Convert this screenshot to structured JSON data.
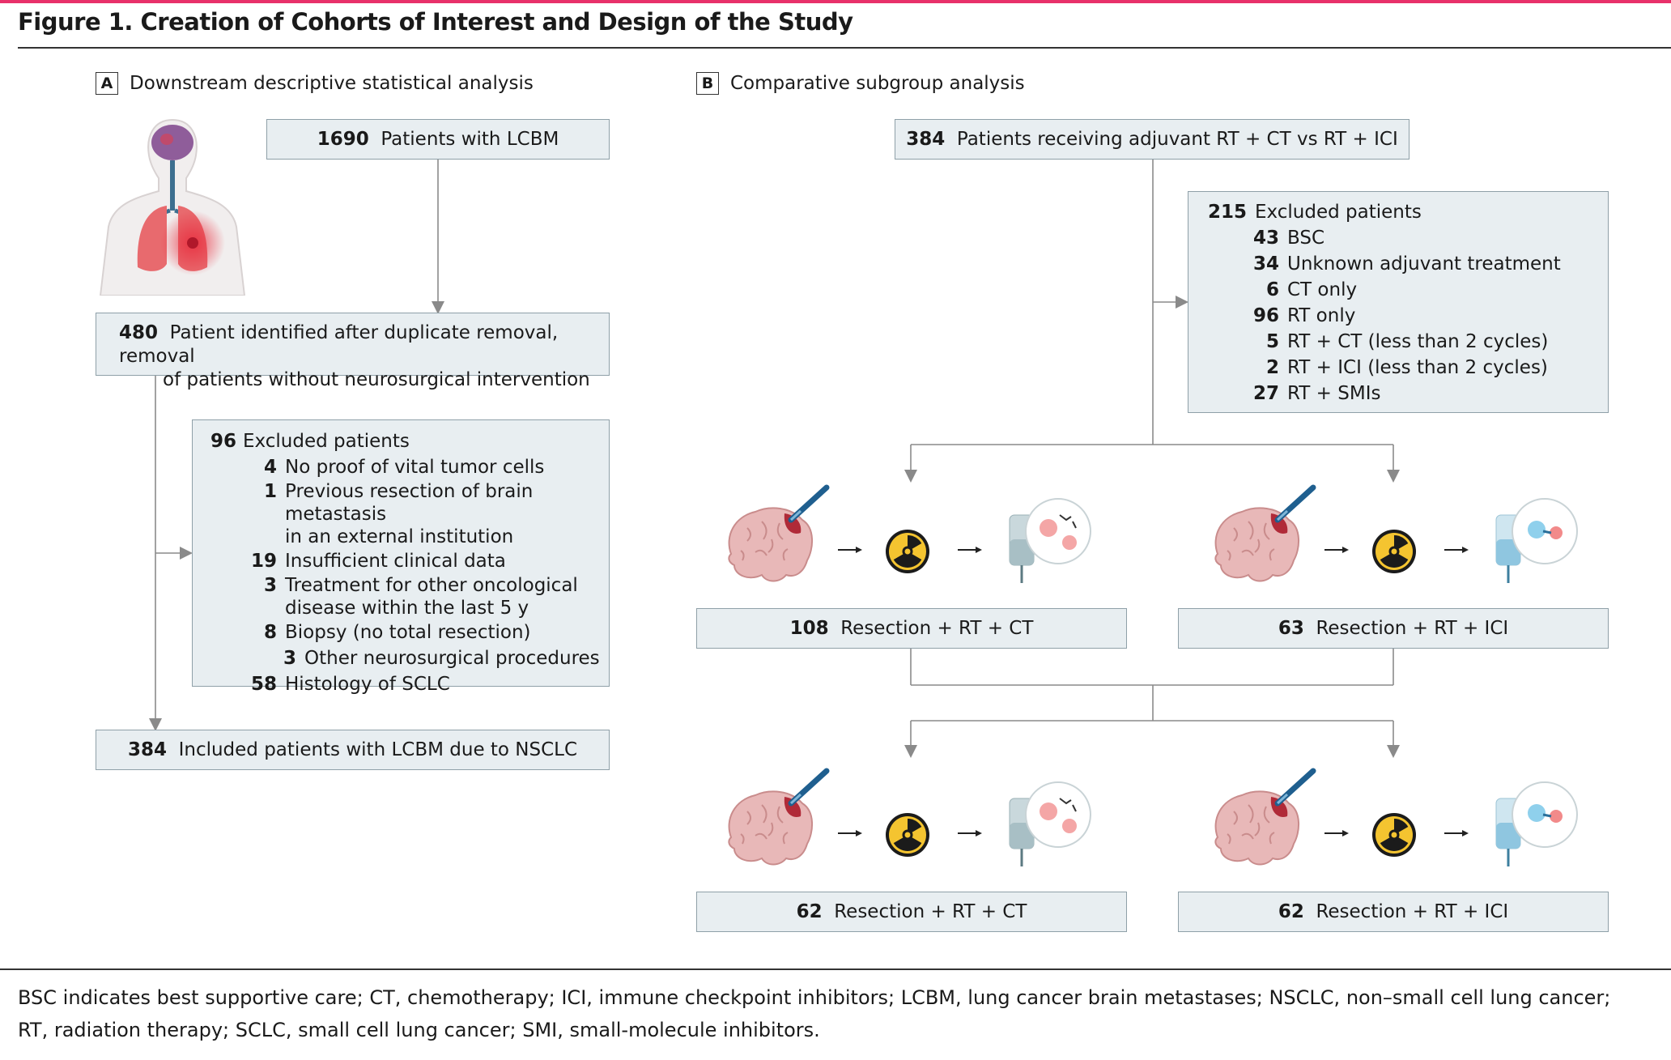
{
  "figure": {
    "title": "Figure 1. Creation of Cohorts of Interest and Design of the Study"
  },
  "panel_a": {
    "letter": "A",
    "label": "Downstream descriptive statistical analysis",
    "box1": {
      "num": "1690",
      "text": "Patients with LCBM"
    },
    "box2": {
      "num": "480",
      "line1": "Patient identified after duplicate removal, removal",
      "line2": "of patients without neurosurgical intervention"
    },
    "excluded": {
      "num": "96",
      "title": "Excluded patients",
      "items": [
        {
          "n": "4",
          "t": "No proof of vital tumor cells"
        },
        {
          "n": "1",
          "t": "Previous resection of brain metastasis",
          "t2": "in an external institution"
        },
        {
          "n": "19",
          "t": "Insufficient clinical data"
        },
        {
          "n": "3",
          "t": "Treatment for other oncological",
          "t2": "disease within the last 5 y"
        },
        {
          "n": "8",
          "t": "Biopsy (no total resection)"
        },
        {
          "n": "3",
          "t": "Other neurosurgical procedures"
        },
        {
          "n": "58",
          "t": "Histology of SCLC"
        }
      ]
    },
    "box_final": {
      "num": "384",
      "text": "Included patients with LCBM due to NSCLC"
    }
  },
  "panel_b": {
    "letter": "B",
    "label": "Comparative subgroup analysis",
    "top": {
      "num": "384",
      "text": "Patients receiving adjuvant RT + CT vs RT + ICI"
    },
    "excluded": {
      "num": "215",
      "title": "Excluded patients",
      "items": [
        {
          "n": "43",
          "t": "BSC"
        },
        {
          "n": "34",
          "t": "Unknown adjuvant treatment"
        },
        {
          "n": "6",
          "t": "CT only"
        },
        {
          "n": "96",
          "t": "RT only"
        },
        {
          "n": "5",
          "t": "RT + CT (less than 2 cycles)"
        },
        {
          "n": "2",
          "t": "RT + ICI (less than 2 cycles)"
        },
        {
          "n": "27",
          "t": "RT + SMIs"
        }
      ]
    },
    "mid_left": {
      "num": "108",
      "text": "Resection + RT + CT"
    },
    "mid_right": {
      "num": "63",
      "text": "Resection + RT + ICI"
    },
    "bot_left": {
      "num": "62",
      "text": "Resection + RT + CT"
    },
    "bot_right": {
      "num": "62",
      "text": "Resection + RT + ICI"
    }
  },
  "footnote": "BSC indicates best supportive care; CT, chemotherapy; ICI, immune checkpoint inhibitors; LCBM, lung cancer brain metastases; NSCLC, non–small cell lung cancer; RT, radiation therapy; SCLC, small cell lung cancer; SMI, small-molecule inhibitors.",
  "colors": {
    "accent": "#e8316a",
    "box_fill": "#e8eef1",
    "box_border": "#8fa0a8",
    "connector": "#8a8a8a"
  },
  "icons": [
    "human-torso-icon",
    "brain-icon",
    "scalpel-icon",
    "arrow-right-icon",
    "radiation-icon",
    "iv-bag-icon"
  ]
}
